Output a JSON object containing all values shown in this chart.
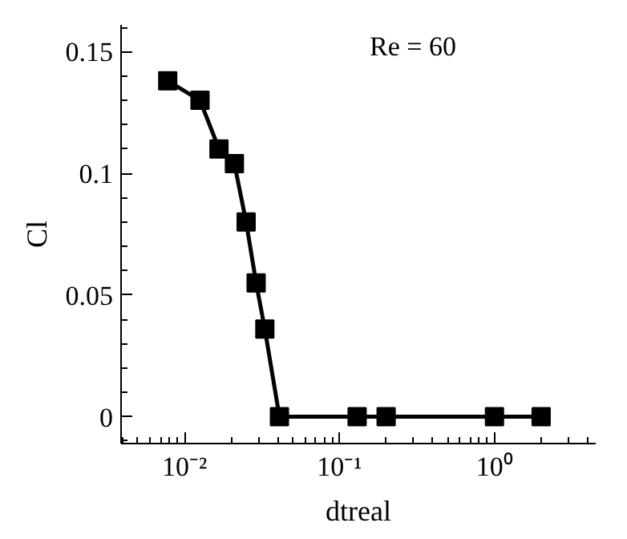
{
  "chart_data": {
    "type": "line",
    "xlabel": "dtreal",
    "ylabel": "Cl",
    "annotations": [
      "Re = 60"
    ],
    "log": "x",
    "marker": "square",
    "line_style": "solid",
    "x": [
      0.0078,
      0.0126,
      0.0167,
      0.021,
      0.025,
      0.029,
      0.033,
      0.041,
      0.13,
      0.2,
      1,
      2
    ],
    "series": [
      {
        "color": "#000000",
        "values": [
          0.138,
          0.13,
          0.11,
          0.104,
          0.08,
          0.055,
          0.036,
          0,
          0,
          0,
          0,
          0
        ]
      }
    ],
    "xlim": [
      0.0039,
      4.5
    ],
    "ylim": [
      -0.011,
      0.161
    ],
    "xticks": [
      {
        "value": 0.01,
        "label": "10⁻²"
      },
      {
        "value": 0.1,
        "label": "10⁻¹"
      },
      {
        "value": 1,
        "label": "10⁰"
      }
    ],
    "yticks": [
      0,
      0.05,
      0.1,
      0.15
    ]
  }
}
